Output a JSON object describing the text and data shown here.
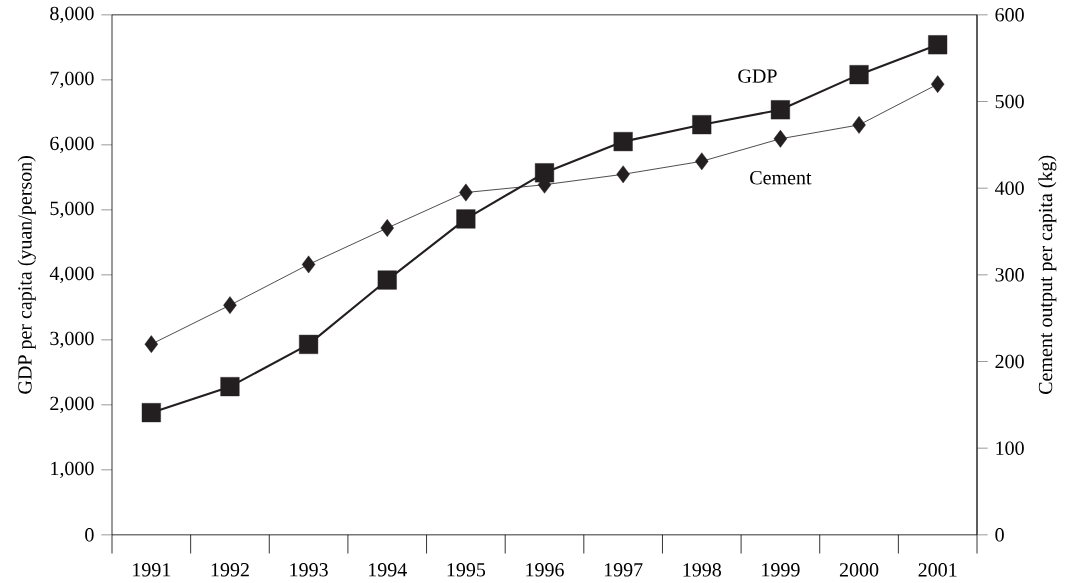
{
  "chart_data": {
    "type": "line",
    "categories": [
      "1991",
      "1992",
      "1993",
      "1994",
      "1995",
      "1996",
      "1997",
      "1998",
      "1999",
      "2000",
      "2001"
    ],
    "ylabel": "GDP per capita (yuan/person)",
    "y2label": "Cement output per capita (kg)",
    "ylim": [
      0,
      8000
    ],
    "yticks": [
      0,
      {
        "value": 1000,
        "label": "1,000"
      },
      {
        "value": 2000,
        "label": "2,000"
      },
      {
        "value": 3000,
        "label": "3,000"
      },
      {
        "value": 4000,
        "label": "4,000"
      },
      {
        "value": 5000,
        "label": "5,000"
      },
      {
        "value": 6000,
        "label": "6,000"
      },
      {
        "value": 7000,
        "label": "7,000"
      },
      {
        "value": 8000,
        "label": "8,000"
      }
    ],
    "y2lim": [
      0,
      600
    ],
    "y2ticks": [
      0,
      100,
      200,
      300,
      400,
      500,
      600
    ],
    "series": [
      {
        "name": "GDP",
        "color": "#231f20",
        "marker": "square",
        "values": [
          1880,
          2280,
          2930,
          3920,
          4860,
          5570,
          6050,
          6310,
          6540,
          7080,
          7540
        ]
      },
      {
        "name": "Cement",
        "color": "#231f20",
        "marker": "diamond",
        "axis": "y2",
        "values": [
          220,
          265,
          312,
          354,
          395,
          404,
          416,
          431,
          457,
          473,
          520
        ]
      }
    ]
  }
}
